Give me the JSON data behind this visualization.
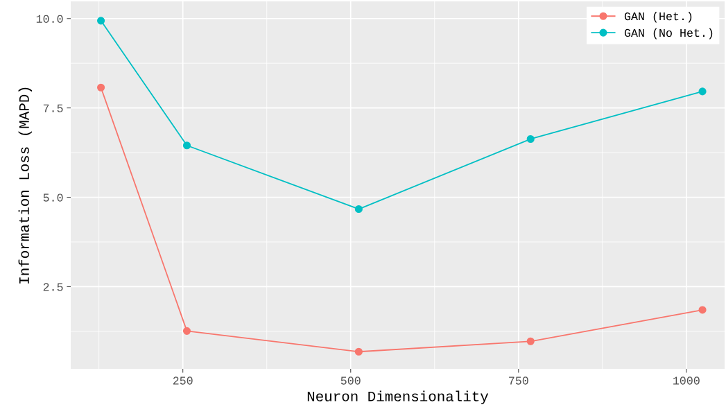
{
  "chart_data": {
    "type": "line",
    "xlabel": "Neuron Dimensionality",
    "ylabel": "Information Loss (MAPD)",
    "x": [
      128,
      256,
      512,
      768,
      1024
    ],
    "series": [
      {
        "name": "GAN (Het.)",
        "color": "#f8766d",
        "values": [
          8.07,
          1.26,
          0.68,
          0.97,
          1.85
        ]
      },
      {
        "name": "GAN (No Het.)",
        "color": "#00bfc4",
        "values": [
          9.94,
          6.45,
          4.67,
          6.63,
          7.96
        ]
      }
    ],
    "xlim": [
      83,
      1057
    ],
    "ylim": [
      0.2,
      10.48
    ],
    "xticks": [
      250,
      500,
      750,
      1000
    ],
    "yticks": [
      {
        "value": 2.5,
        "label": "2.5"
      },
      {
        "value": 5,
        "label": "5.0"
      },
      {
        "value": 7.5,
        "label": "7.5"
      },
      {
        "value": 10,
        "label": "10.0"
      }
    ],
    "grid": true,
    "legend": "top right",
    "marker": "circle",
    "line_style": "solid"
  }
}
